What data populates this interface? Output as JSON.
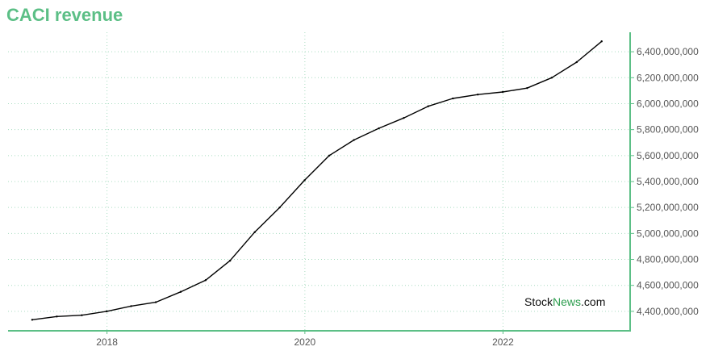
{
  "title": "CACI revenue",
  "watermark": {
    "part1": "Stock",
    "part2": "News",
    "part3": ".com"
  },
  "colors": {
    "title": "#5cbf86",
    "axis": "#5cbf86",
    "grid": "#a8dcc0",
    "line": "#000000",
    "watermark_green": "#2e9e4f"
  },
  "chart_data": {
    "type": "line",
    "title": "CACI revenue",
    "xlabel": "",
    "ylabel": "",
    "grid": true,
    "x_ticks": [
      "2018",
      "2020",
      "2022"
    ],
    "y_ticks": [
      "4,400,000,000",
      "4,600,000,000",
      "4,800,000,000",
      "5,000,000,000",
      "5,200,000,000",
      "5,400,000,000",
      "5,600,000,000",
      "5,800,000,000",
      "6,000,000,000",
      "6,200,000,000",
      "6,400,000,000"
    ],
    "xlim": [
      "2017-01-01",
      "2023-04-15"
    ],
    "ylim": [
      4250000000,
      6550000000
    ],
    "series": [
      {
        "x": [
          "2017-03-31",
          "2017-06-30",
          "2017-09-30",
          "2017-12-31",
          "2018-03-31",
          "2018-06-30",
          "2018-09-30",
          "2018-12-31",
          "2019-03-31",
          "2019-06-30",
          "2019-09-30",
          "2019-12-31",
          "2020-03-31",
          "2020-06-30",
          "2020-09-30",
          "2020-12-31",
          "2021-03-31",
          "2021-06-30",
          "2021-09-30",
          "2021-12-31",
          "2022-03-31",
          "2022-06-30",
          "2022-09-30",
          "2022-12-31"
        ],
        "values": [
          4335000000,
          4360000000,
          4370000000,
          4400000000,
          4440000000,
          4470000000,
          4550000000,
          4640000000,
          4790000000,
          5010000000,
          5200000000,
          5410000000,
          5600000000,
          5720000000,
          5810000000,
          5890000000,
          5980000000,
          6040000000,
          6070000000,
          6090000000,
          6120000000,
          6200000000,
          6320000000,
          6480000000
        ]
      }
    ]
  }
}
